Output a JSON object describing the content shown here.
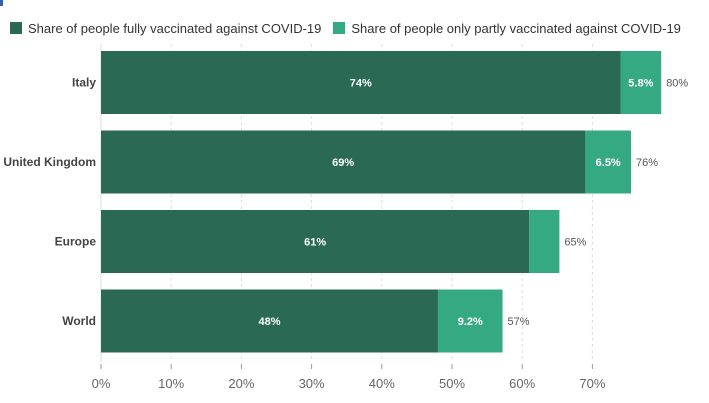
{
  "chart_data": {
    "type": "bar",
    "orientation": "horizontal",
    "stacked": true,
    "categories": [
      "Italy",
      "United Kingdom",
      "Europe",
      "World"
    ],
    "series": [
      {
        "name": "Share of people fully vaccinated against COVID-19",
        "values": [
          74,
          69,
          61,
          48
        ],
        "labels": [
          "74%",
          "69%",
          "61%",
          "48%"
        ],
        "color": "#2a6953"
      },
      {
        "name": "Share of people only partly vaccinated against COVID-19",
        "values": [
          5.8,
          6.5,
          4.3,
          9.2
        ],
        "labels": [
          "5.8%",
          "6.5%",
          "",
          "9.2%"
        ],
        "color": "#34a982"
      }
    ],
    "totals": [
      "80%",
      "76%",
      "65%",
      "57%"
    ],
    "xlim": [
      0,
      80
    ],
    "xticks": [
      0,
      10,
      20,
      30,
      40,
      50,
      60,
      70
    ],
    "xtick_labels": [
      "0%",
      "10%",
      "20%",
      "30%",
      "40%",
      "50%",
      "60%",
      "70%"
    ],
    "grid": true,
    "legend_position": "top-left"
  }
}
